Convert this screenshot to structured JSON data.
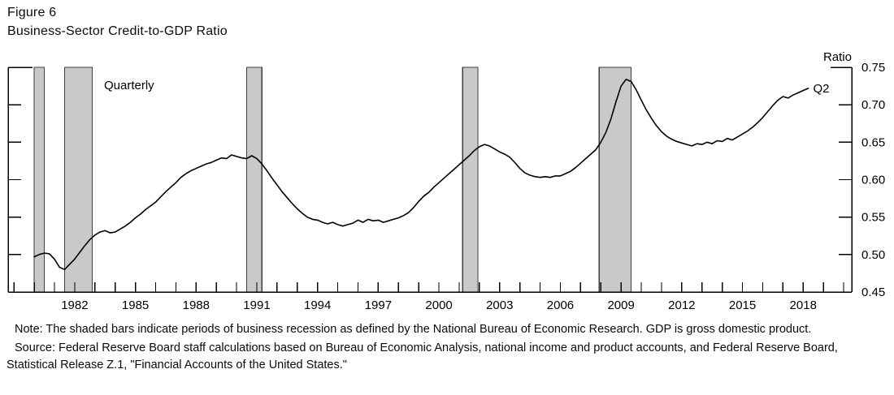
{
  "figure": {
    "label": "Figure 6",
    "title": "Business-Sector Credit-to-GDP Ratio"
  },
  "notes": {
    "note": "Note: The shaded bars indicate periods of business recession as defined by the National Bureau of Economic Research. GDP is gross domestic product.",
    "source": "Source: Federal Reserve Board staff calculations based on Bureau of Economic Analysis, national income and product accounts, and Federal Reserve Board, Statistical Release Z.1, \"Financial Accounts of the United States.\""
  },
  "chart_data": {
    "type": "line",
    "title": "Business-Sector Credit-to-GDP Ratio",
    "frequency_label": "Quarterly",
    "axis_unit_label": "Ratio",
    "last_point_label": "Q2",
    "ylabel": "Ratio",
    "ylim": [
      0.45,
      0.75
    ],
    "y_ticks": [
      0.45,
      0.5,
      0.55,
      0.6,
      0.65,
      0.7,
      0.75
    ],
    "xlim": [
      1978.71,
      2020.4
    ],
    "x_labeled_years": [
      1982,
      1985,
      1988,
      1991,
      1994,
      1997,
      2000,
      2003,
      2006,
      2009,
      2012,
      2015,
      2018
    ],
    "x_minor_tick_interval_years": 1,
    "grid": false,
    "legend_position": "none",
    "line_color": "#000000",
    "recession_fill": "#c9c9c9",
    "recession_border": "#3f3f3f",
    "recessions": [
      [
        1980.0,
        1980.5
      ],
      [
        1981.5,
        1982.87
      ],
      [
        1990.5,
        1991.25
      ],
      [
        2001.17,
        2001.92
      ],
      [
        2007.92,
        2009.5
      ]
    ],
    "series": [
      {
        "name": "Business-sector credit-to-GDP ratio",
        "frequency": "quarterly",
        "start_year": 1980,
        "start_quarter": 1,
        "end_label": "2018 Q2",
        "values": [
          0.497,
          0.5,
          0.502,
          0.501,
          0.494,
          0.483,
          0.48,
          0.487,
          0.494,
          0.503,
          0.512,
          0.52,
          0.526,
          0.53,
          0.532,
          0.529,
          0.53,
          0.534,
          0.538,
          0.543,
          0.549,
          0.554,
          0.56,
          0.565,
          0.57,
          0.577,
          0.584,
          0.59,
          0.596,
          0.603,
          0.608,
          0.612,
          0.615,
          0.618,
          0.621,
          0.623,
          0.626,
          0.629,
          0.628,
          0.633,
          0.631,
          0.629,
          0.628,
          0.632,
          0.628,
          0.621,
          0.612,
          0.602,
          0.593,
          0.584,
          0.576,
          0.568,
          0.561,
          0.555,
          0.55,
          0.547,
          0.546,
          0.543,
          0.541,
          0.543,
          0.54,
          0.538,
          0.54,
          0.542,
          0.546,
          0.543,
          0.547,
          0.545,
          0.546,
          0.543,
          0.545,
          0.547,
          0.549,
          0.552,
          0.556,
          0.563,
          0.571,
          0.578,
          0.583,
          0.59,
          0.596,
          0.602,
          0.608,
          0.614,
          0.62,
          0.626,
          0.632,
          0.639,
          0.644,
          0.647,
          0.645,
          0.641,
          0.637,
          0.634,
          0.63,
          0.623,
          0.615,
          0.609,
          0.606,
          0.604,
          0.603,
          0.604,
          0.603,
          0.605,
          0.605,
          0.608,
          0.611,
          0.616,
          0.622,
          0.628,
          0.634,
          0.64,
          0.65,
          0.663,
          0.681,
          0.704,
          0.725,
          0.734,
          0.731,
          0.72,
          0.706,
          0.693,
          0.682,
          0.672,
          0.664,
          0.658,
          0.654,
          0.651,
          0.649,
          0.647,
          0.645,
          0.648,
          0.647,
          0.65,
          0.648,
          0.652,
          0.651,
          0.655,
          0.653,
          0.657,
          0.661,
          0.665,
          0.67,
          0.676,
          0.683,
          0.691,
          0.699,
          0.706,
          0.711,
          0.709,
          0.713,
          0.716,
          0.719,
          0.722
        ]
      }
    ]
  }
}
